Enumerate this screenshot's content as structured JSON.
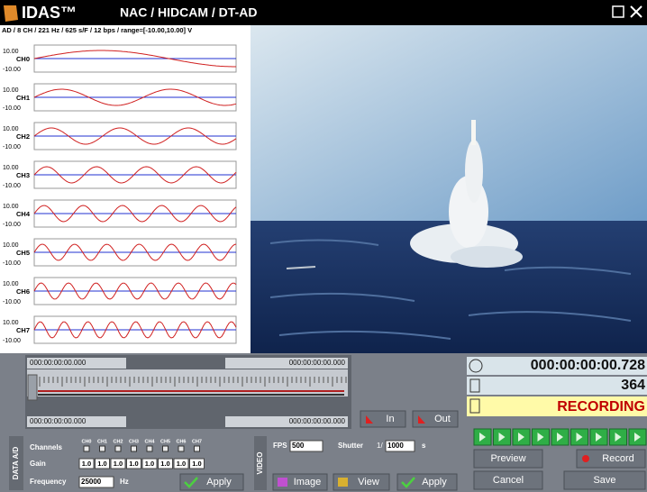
{
  "header": {
    "logo": "IDAS™",
    "title": "NAC / HIDCAM / DT-AD"
  },
  "info": "AD / 8 CH / 221 Hz / 625 s/F / 12 bps / range=[-10.00,10.00] V",
  "channels": [
    {
      "max": "10.00",
      "name": "CH0",
      "min": "-10.00"
    },
    {
      "max": "10.00",
      "name": "CH1",
      "min": "-10.00"
    },
    {
      "max": "10.00",
      "name": "CH2",
      "min": "-10.00"
    },
    {
      "max": "10.00",
      "name": "CH3",
      "min": "-10.00"
    },
    {
      "max": "10.00",
      "name": "CH4",
      "min": "-10.00"
    },
    {
      "max": "10.00",
      "name": "CH5",
      "min": "-10.00"
    },
    {
      "max": "10.00",
      "name": "CH6",
      "min": "-10.00"
    },
    {
      "max": "10.00",
      "name": "CH7",
      "min": "-10.00"
    }
  ],
  "timeline": {
    "start_top": "000:00:00:00.000",
    "end_top": "000:00:00:00.000",
    "start_bottom": "000:00:00:00.000",
    "end_bottom": "000:00:00:00.000",
    "in": "In",
    "out": "Out"
  },
  "status": {
    "time": "000:00:00:00.728",
    "frames": "364",
    "state": "RECORDING"
  },
  "controls": {
    "preview": "Preview",
    "record": "Record",
    "cancel": "Cancel",
    "save": "Save"
  },
  "data_ad": {
    "section": "DATA A/D",
    "channels_label": "Channels",
    "channel_names": [
      "CH0",
      "CH1",
      "CH2",
      "CH3",
      "CH4",
      "CH5",
      "CH6",
      "CH7"
    ],
    "gain_label": "Gain",
    "gains": [
      "1.0",
      "1.0",
      "1.0",
      "1.0",
      "1.0",
      "1.0",
      "1.0",
      "1.0"
    ],
    "frequency_label": "Frequency",
    "frequency": "25000",
    "unit": "Hz",
    "apply": "Apply"
  },
  "video": {
    "section": "VIDEO",
    "fps_label": "FPS",
    "fps": "500",
    "shutter_label": "Shutter",
    "shutter_prefix": "1/",
    "shutter": "1000",
    "shutter_unit": "s",
    "image": "Image",
    "view": "View",
    "apply": "Apply"
  }
}
